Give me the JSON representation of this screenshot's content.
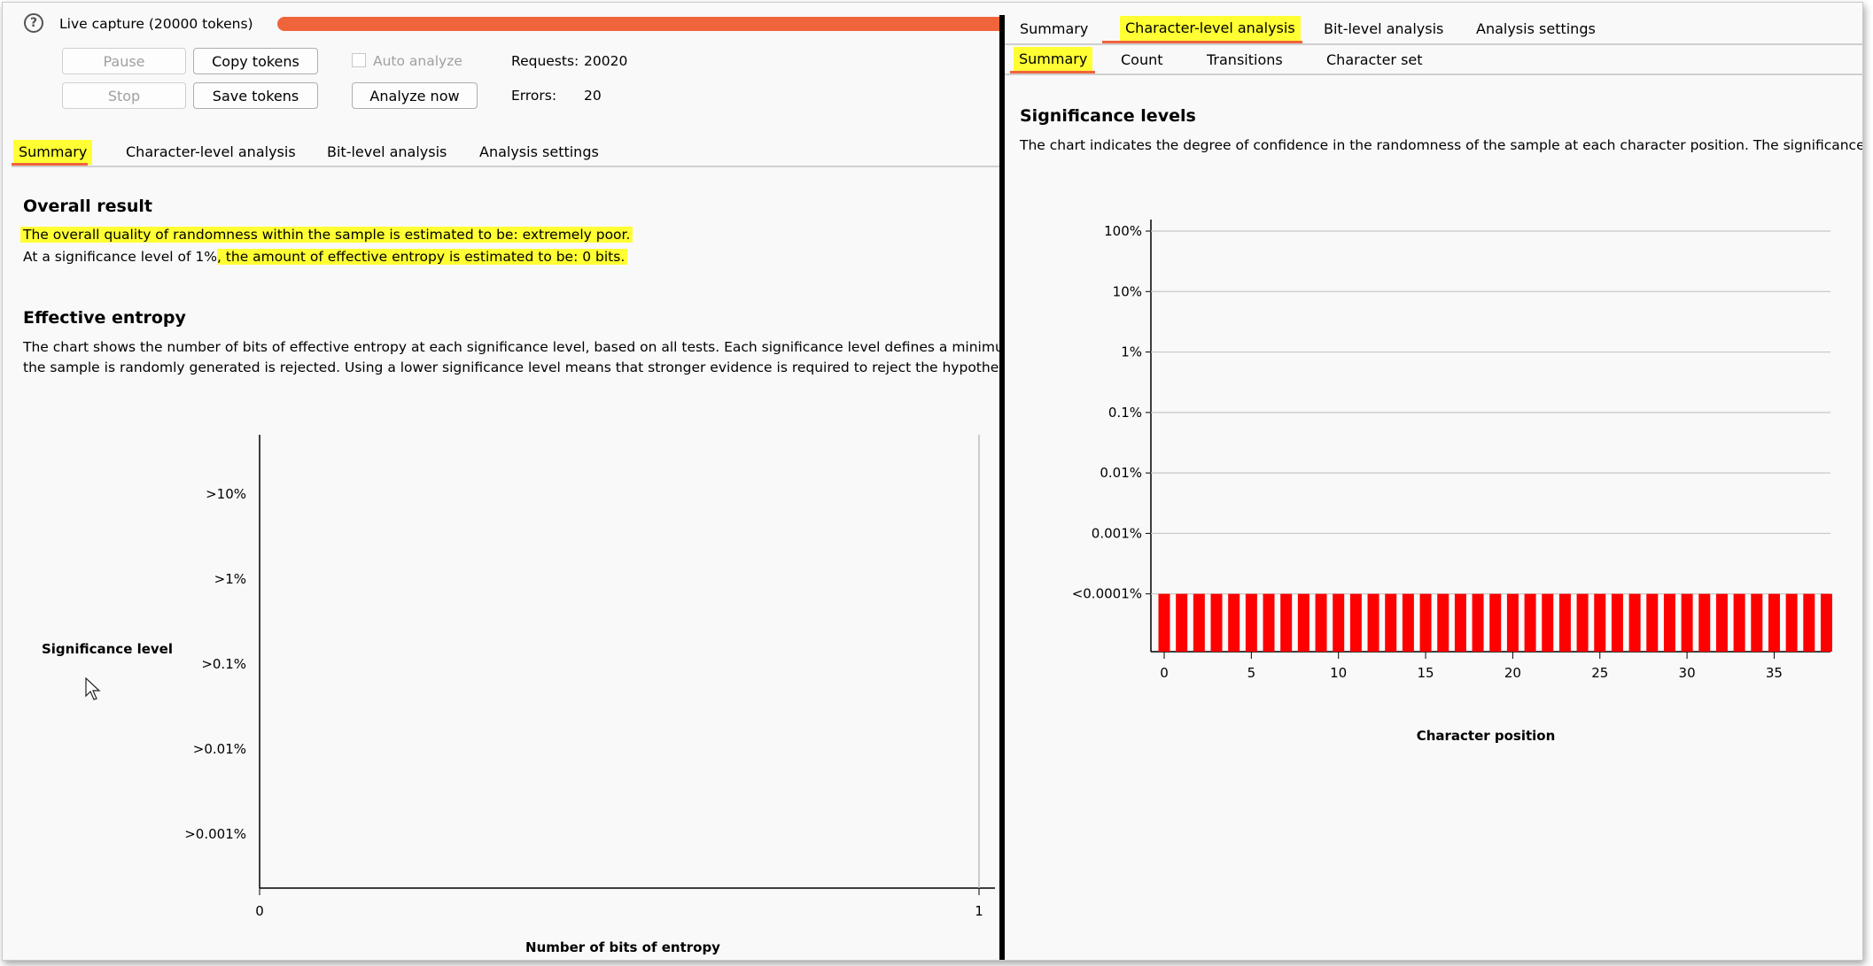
{
  "capture": {
    "title": "Live capture (20000 tokens)",
    "help_icon": "help-icon",
    "progress": 1.0,
    "progress_color": "#f0643c",
    "buttons": {
      "pause": "Pause",
      "copy_tokens": "Copy tokens",
      "stop": "Stop",
      "save_tokens": "Save tokens",
      "analyze_now": "Analyze now"
    },
    "auto_analyze": {
      "label": "Auto analyze",
      "checked": false
    },
    "requests": {
      "label": "Requests:",
      "value": "20020"
    },
    "errors": {
      "label": "Errors:",
      "value": "20"
    }
  },
  "left_tabs": [
    "Summary",
    "Character-level analysis",
    "Bit-level analysis",
    "Analysis settings"
  ],
  "overall": {
    "heading": "Overall result",
    "line1": "The overall quality of randomness within the sample is estimated to be: extremely poor.",
    "line2_prefix": "At a significance level of 1%",
    "line2_highlight": ", the amount of effective entropy is estimated to be: 0 bits."
  },
  "entropy": {
    "heading": "Effective entropy",
    "line1": "The chart shows the number of bits of effective entropy at each significance level, based on all tests. Each significance level defines a minimum",
    "line2": "the sample is randomly generated is rejected. Using a lower significance level means that stronger evidence is required to reject the hypothesis"
  },
  "right_tabs": [
    "Summary",
    "Character-level analysis",
    "Bit-level analysis",
    "Analysis settings"
  ],
  "right_subtabs": [
    "Summary",
    "Count",
    "Transitions",
    "Character set"
  ],
  "significance": {
    "heading": "Significance levels",
    "desc": "The chart indicates the degree of confidence in the randomness of the sample at each character position. The significance le"
  },
  "chart_data": [
    {
      "type": "bar",
      "orientation": "horizontal",
      "categories": [
        ">10%",
        ">1%",
        ">0.1%",
        ">0.01%",
        ">0.001%"
      ],
      "values": [
        0,
        0,
        0,
        0,
        0
      ],
      "xlabel": "Number of bits of entropy",
      "ylabel": "Significance level",
      "xlim": [
        0,
        1
      ],
      "xticks": [
        "0",
        "1"
      ]
    },
    {
      "type": "bar",
      "x": [
        0,
        1,
        2,
        3,
        4,
        5,
        6,
        7,
        8,
        9,
        10,
        11,
        12,
        13,
        14,
        15,
        16,
        17,
        18,
        19,
        20,
        21,
        22,
        23,
        24,
        25,
        26,
        27,
        28,
        29,
        30,
        31,
        32,
        33,
        34,
        35,
        36,
        37,
        38
      ],
      "values_label": "<0.0001%",
      "yticks": [
        "<0.0001%",
        "0.001%",
        "0.01%",
        "0.1%",
        "1%",
        "10%",
        "100%"
      ],
      "xticks": [
        "0",
        "5",
        "10",
        "15",
        "20",
        "25",
        "30",
        "35"
      ],
      "xlabel": "Character position",
      "bar_color": "#ff0000",
      "grid": true
    }
  ]
}
